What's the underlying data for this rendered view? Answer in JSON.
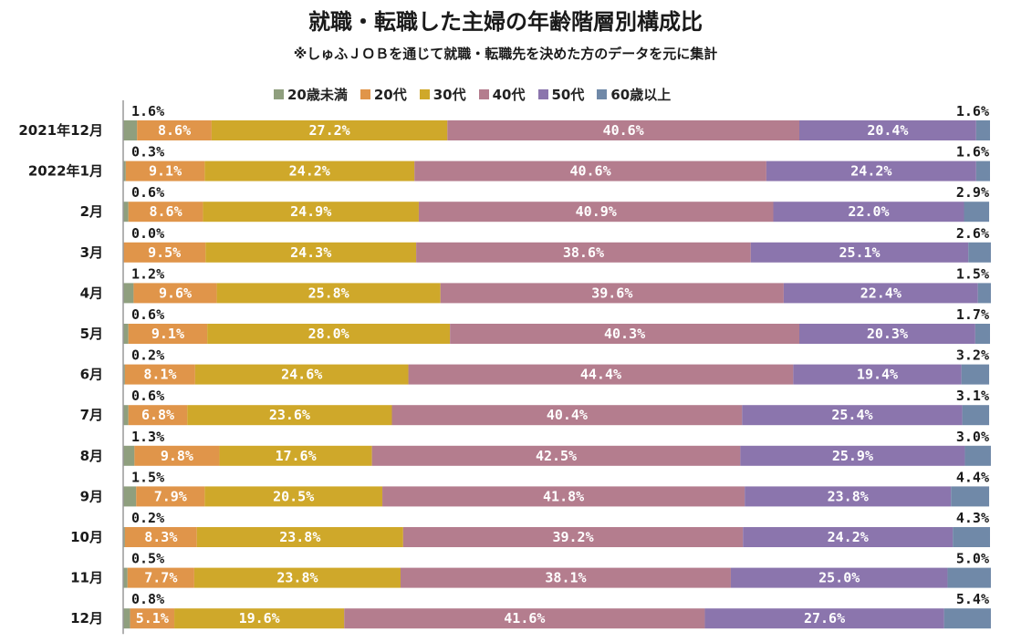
{
  "title": "就職・転職した主婦の年齢階層別構成比",
  "subtitle": "※しゅふＪＯＢを通じて就職・転職先を決めた方のデータを元に集計",
  "chart_data": {
    "type": "bar",
    "orientation": "horizontal-stacked-100",
    "categories": [
      "2021年12月",
      "2022年1月",
      "2月",
      "3月",
      "4月",
      "5月",
      "6月",
      "7月",
      "8月",
      "9月",
      "10月",
      "11月",
      "12月"
    ],
    "series": [
      {
        "name": "20歳未満",
        "color": "#8f9f7e",
        "values": [
          1.6,
          0.3,
          0.6,
          0.0,
          1.2,
          0.6,
          0.2,
          0.6,
          1.3,
          1.5,
          0.2,
          0.5,
          0.8
        ]
      },
      {
        "name": "20代",
        "color": "#e0954a",
        "values": [
          8.6,
          9.1,
          8.6,
          9.5,
          9.6,
          9.1,
          8.1,
          6.8,
          9.8,
          7.9,
          8.3,
          7.7,
          5.1
        ]
      },
      {
        "name": "30代",
        "color": "#cfa82a",
        "values": [
          27.2,
          24.2,
          24.9,
          24.3,
          25.8,
          28.0,
          24.6,
          23.6,
          17.6,
          20.5,
          23.8,
          23.8,
          19.6
        ]
      },
      {
        "name": "40代",
        "color": "#b47d8e",
        "values": [
          40.6,
          40.6,
          40.9,
          38.6,
          39.6,
          40.3,
          44.4,
          40.4,
          42.5,
          41.8,
          39.2,
          38.1,
          41.6
        ]
      },
      {
        "name": "50代",
        "color": "#8b75ad",
        "values": [
          20.4,
          24.2,
          22.0,
          25.1,
          22.4,
          20.3,
          19.4,
          25.4,
          25.9,
          23.8,
          24.2,
          25.0,
          27.6
        ]
      },
      {
        "name": "60歳以上",
        "color": "#7089a8",
        "values": [
          1.6,
          1.6,
          2.9,
          2.6,
          1.5,
          1.7,
          3.2,
          3.1,
          3.0,
          4.4,
          4.3,
          5.0,
          5.4
        ]
      }
    ],
    "xlim": [
      0,
      100
    ],
    "value_suffix": "%",
    "legend_position": "top"
  }
}
